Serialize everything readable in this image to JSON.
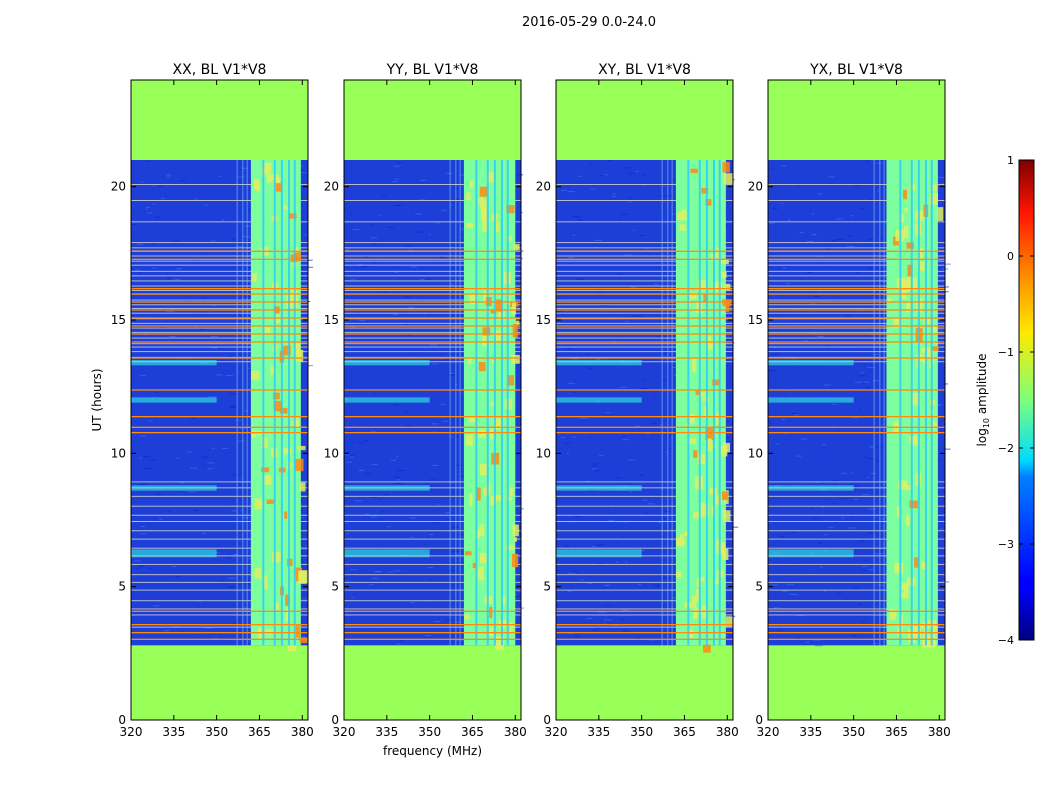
{
  "suptitle": "2016-05-29 0.0-24.0",
  "colors": {
    "masked": "#99ff59",
    "background_blue": "#1d3fd8",
    "signal_green": "#7dffa0",
    "signal_yellow": "#e0f060",
    "rfi_orange": "#ff8a10",
    "rfi_gray": "#c8c8c8",
    "rfi_cyan": "#33ffe0"
  },
  "chart_data": [
    {
      "type": "heatmap",
      "title": "XX, BL V1*V8",
      "ylabel": "UT (hours)",
      "xlabel": "",
      "xlim": [
        320,
        382
      ],
      "ylim": [
        0,
        24
      ],
      "xticks": [
        320,
        335,
        350,
        365,
        380
      ],
      "yticks": [
        0,
        5,
        10,
        15,
        20
      ],
      "data_window_hours": [
        2.8,
        21.0
      ]
    },
    {
      "type": "heatmap",
      "title": "YY, BL V1*V8",
      "ylabel": "",
      "xlabel": "frequency (MHz)",
      "xlim": [
        320,
        382
      ],
      "ylim": [
        0,
        24
      ],
      "xticks": [
        320,
        335,
        350,
        365,
        380
      ],
      "yticks": [
        0,
        5,
        10,
        15,
        20
      ],
      "data_window_hours": [
        2.8,
        21.0
      ]
    },
    {
      "type": "heatmap",
      "title": "XY, BL V1*V8",
      "ylabel": "",
      "xlabel": "",
      "xlim": [
        320,
        382
      ],
      "ylim": [
        0,
        24
      ],
      "xticks": [
        320,
        335,
        350,
        365,
        380
      ],
      "yticks": [
        0,
        5,
        10,
        15,
        20
      ],
      "data_window_hours": [
        2.8,
        21.0
      ]
    },
    {
      "type": "heatmap",
      "title": "YX, BL V1*V8",
      "ylabel": "",
      "xlabel": "",
      "xlim": [
        320,
        382
      ],
      "ylim": [
        0,
        24
      ],
      "xticks": [
        320,
        335,
        350,
        365,
        380
      ],
      "yticks": [
        0,
        5,
        10,
        15,
        20
      ],
      "data_window_hours": [
        2.8,
        21.0
      ]
    }
  ],
  "colorbar": {
    "label": "log10 amplitude",
    "label_main": "log",
    "label_sub": "10",
    "label_tail": " amplitude",
    "range": [
      -4,
      1
    ],
    "ticks": [
      1,
      0,
      -1,
      -2,
      -3,
      -4
    ],
    "tick_labels": [
      "1",
      "0",
      "−1",
      "−2",
      "−3",
      "−4"
    ]
  }
}
